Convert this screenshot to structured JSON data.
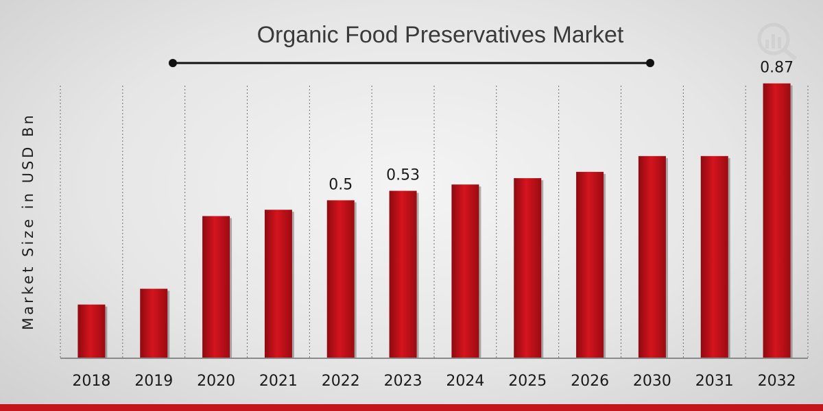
{
  "chart_data": {
    "type": "bar",
    "title": "Organic Food Preservatives Market",
    "ylabel": "Market Size in USD Bn",
    "xlabel": "",
    "categories": [
      "2018",
      "2019",
      "2020",
      "2021",
      "2022",
      "2023",
      "2024",
      "2025",
      "2026",
      "2030",
      "2031",
      "2032"
    ],
    "values": [
      0.17,
      0.22,
      0.45,
      0.47,
      0.5,
      0.53,
      0.55,
      0.57,
      0.59,
      0.64,
      0.64,
      0.87
    ],
    "data_labels": [
      null,
      null,
      null,
      null,
      "0.5",
      "0.53",
      null,
      null,
      null,
      null,
      null,
      "0.87"
    ],
    "ylim": [
      0,
      0.85
    ],
    "grid": "vertical dotted separators",
    "legend": "none",
    "colors": {
      "bar": "#c8101a",
      "bar_dark": "#8e0a10",
      "accent_strip": "#c4151c"
    }
  }
}
